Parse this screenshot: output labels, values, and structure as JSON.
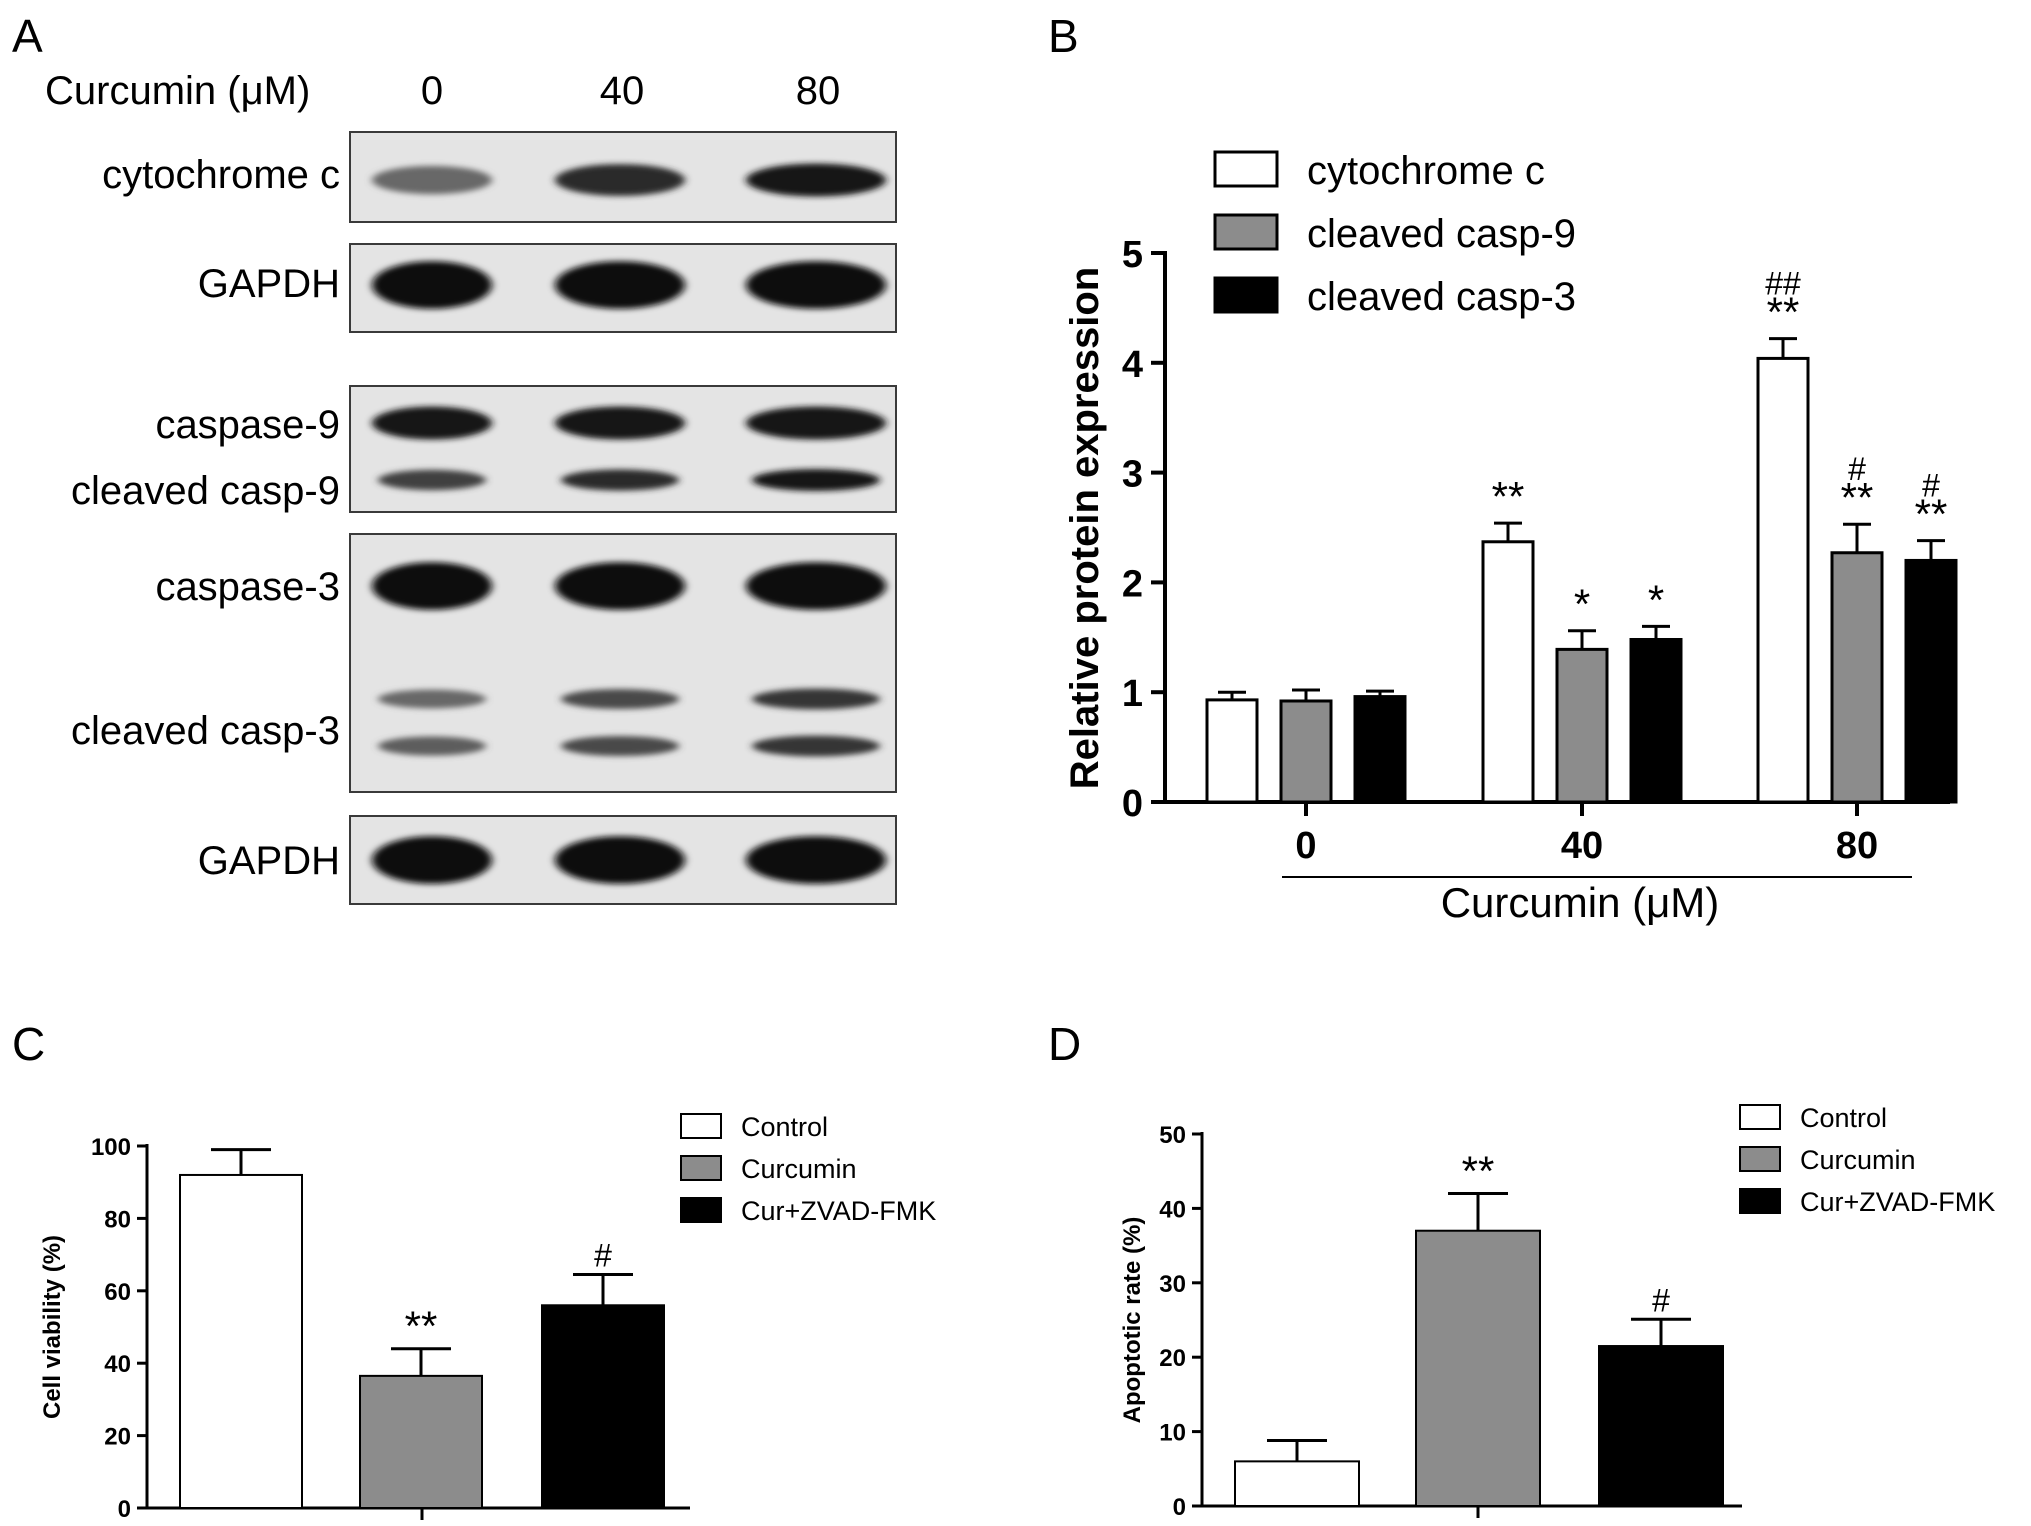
{
  "panels": {
    "a": {
      "letter": "A"
    },
    "b": {
      "letter": "B"
    },
    "c": {
      "letter": "C"
    },
    "d": {
      "letter": "D"
    }
  },
  "blot": {
    "header_label": "Curcumin (μM)",
    "lanes": [
      "0",
      "40",
      "80"
    ],
    "rows": [
      {
        "labels": [
          "cytochrome c"
        ],
        "bands": [
          {
            "intensity": [
              0.55,
              0.85,
              0.95
            ]
          }
        ]
      },
      {
        "labels": [
          "GAPDH"
        ],
        "bands": [
          {
            "intensity": [
              1.0,
              1.0,
              1.0
            ]
          }
        ]
      },
      {
        "labels": [
          "caspase-9",
          "cleaved casp-9"
        ],
        "bands": [
          {
            "intensity": [
              0.95,
              0.95,
              0.95
            ]
          },
          {
            "intensity": [
              0.75,
              0.85,
              0.95
            ]
          }
        ]
      },
      {
        "labels": [
          "caspase-3",
          "cleaved casp-3"
        ],
        "bands": [
          {
            "intensity": [
              1.0,
              1.0,
              1.0
            ]
          },
          {
            "intensity": [
              0.55,
              0.7,
              0.8
            ]
          },
          {
            "intensity": [
              0.6,
              0.7,
              0.8
            ]
          }
        ]
      },
      {
        "labels": [
          "GAPDH"
        ],
        "bands": [
          {
            "intensity": [
              1.0,
              1.0,
              1.0
            ]
          }
        ]
      }
    ]
  },
  "chart_data": [
    {
      "panel": "B",
      "type": "bar",
      "categories": [
        "0",
        "40",
        "80"
      ],
      "xlabel": "Curcumin (μM)",
      "ylabel": "Relative protein expression",
      "ylim": [
        0,
        5
      ],
      "yticks": [
        0,
        1,
        2,
        3,
        4,
        5
      ],
      "legend_position": "top-left",
      "series": [
        {
          "name": "cytochrome c",
          "color": "#ffffff",
          "values": [
            0.93,
            2.37,
            4.04
          ],
          "errors": [
            0.07,
            0.17,
            0.18
          ],
          "annotations": [
            "",
            "**",
            "##\n**"
          ]
        },
        {
          "name": "cleaved casp-9",
          "color": "#8c8c8c",
          "values": [
            0.92,
            1.39,
            2.27
          ],
          "errors": [
            0.1,
            0.17,
            0.26
          ],
          "annotations": [
            "",
            "*",
            "#\n**"
          ]
        },
        {
          "name": "cleaved casp-3",
          "color": "#000000",
          "values": [
            0.96,
            1.48,
            2.2
          ],
          "errors": [
            0.05,
            0.12,
            0.18
          ],
          "annotations": [
            "",
            "*",
            "#\n**"
          ]
        }
      ]
    },
    {
      "panel": "C",
      "type": "bar",
      "categories": [
        "Control",
        "Curcumin",
        "Cur+ZVAD-FMK"
      ],
      "ylabel": "Cell viability (%)",
      "ylim": [
        0,
        100
      ],
      "yticks": [
        0,
        20,
        40,
        60,
        80,
        100
      ],
      "legend_position": "top-right",
      "colors": [
        "#ffffff",
        "#8c8c8c",
        "#000000"
      ],
      "values": [
        92,
        36.5,
        56
      ],
      "errors": [
        7,
        7.5,
        8.5
      ],
      "annotations": [
        "",
        "**",
        "#"
      ]
    },
    {
      "panel": "D",
      "type": "bar",
      "categories": [
        "Control",
        "Curcumin",
        "Cur+ZVAD-FMK"
      ],
      "ylabel": "Apoptotic rate (%)",
      "ylim": [
        0,
        50
      ],
      "yticks": [
        0,
        10,
        20,
        30,
        40,
        50
      ],
      "legend_position": "top-right",
      "colors": [
        "#ffffff",
        "#8c8c8c",
        "#000000"
      ],
      "values": [
        6,
        37,
        21.5
      ],
      "errors": [
        2.8,
        5,
        3.6
      ],
      "annotations": [
        "",
        "**",
        "#"
      ]
    }
  ]
}
